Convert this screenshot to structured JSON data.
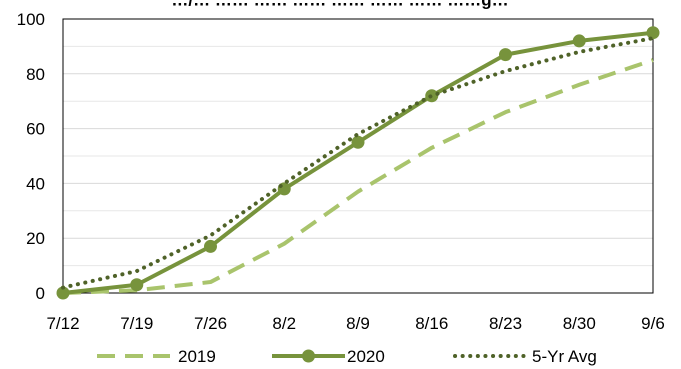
{
  "chart_data": {
    "type": "line",
    "title": "…/… …… …… …… …… …… …… ……g…",
    "xlabel": "",
    "ylabel": "",
    "categories": [
      "7/12",
      "7/19",
      "7/26",
      "8/2",
      "8/9",
      "8/16",
      "8/23",
      "8/30",
      "9/6"
    ],
    "ylim": [
      0,
      100
    ],
    "yticks": [
      "0",
      "20",
      "40",
      "60",
      "80",
      "100"
    ],
    "grid": true,
    "legend_position": "bottom",
    "series": [
      {
        "name": "2019",
        "values": [
          0,
          1,
          4,
          18,
          37,
          53,
          66,
          76,
          85
        ],
        "color": "#a9c46c",
        "style": "dashed"
      },
      {
        "name": "2020",
        "values": [
          0,
          3,
          17,
          38,
          55,
          72,
          87,
          92,
          95
        ],
        "color": "#77933c",
        "style": "solid-markers"
      },
      {
        "name": "5-Yr Avg",
        "values": [
          2,
          8,
          21,
          40,
          58,
          72,
          81,
          88,
          93
        ],
        "color": "#4f6228",
        "style": "dotted"
      }
    ]
  }
}
